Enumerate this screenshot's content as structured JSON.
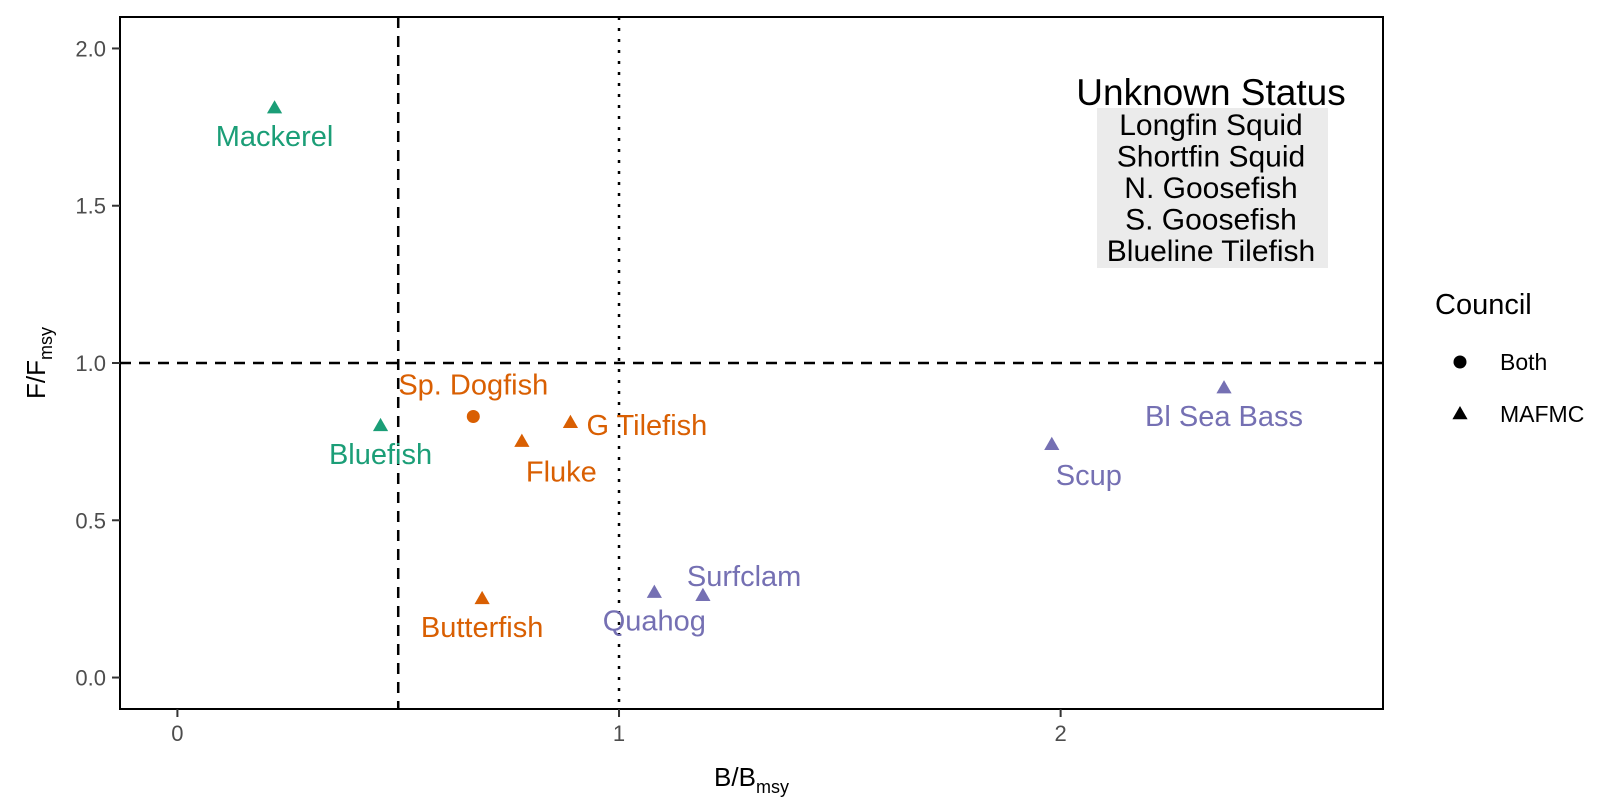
{
  "chart_data": {
    "type": "scatter",
    "xlabel": "B/B",
    "xlabel_sub": "msy",
    "ylabel": "F/F",
    "ylabel_sub": "msy",
    "xlim": [
      -0.13,
      2.73
    ],
    "ylim": [
      -0.1,
      2.1
    ],
    "x_ticks": [
      0,
      1,
      2
    ],
    "y_ticks": [
      0.0,
      0.5,
      1.0,
      1.5,
      2.0
    ],
    "x_tick_labels": [
      "0",
      "1",
      "2"
    ],
    "y_tick_labels": [
      "0.0",
      "0.5",
      "1.0",
      "1.5",
      "2.0"
    ],
    "grid": false,
    "reference_lines": [
      {
        "axis": "x",
        "value": 0.5,
        "style": "dashed"
      },
      {
        "axis": "x",
        "value": 1.0,
        "style": "dotted"
      },
      {
        "axis": "y",
        "value": 1.0,
        "style": "dashed"
      }
    ],
    "colors": {
      "green": "#1b9e77",
      "orange": "#d95f02",
      "purple": "#7570b3"
    },
    "points": [
      {
        "label": "Mackerel",
        "x": 0.22,
        "y": 1.81,
        "council": "MAFMC",
        "color": "#1b9e77",
        "label_pos": "below"
      },
      {
        "label": "Bluefish",
        "x": 0.46,
        "y": 0.8,
        "council": "MAFMC",
        "color": "#1b9e77",
        "label_pos": "below"
      },
      {
        "label": "Sp. Dogfish",
        "x": 0.67,
        "y": 0.83,
        "council": "Both",
        "color": "#d95f02",
        "label_pos": "above"
      },
      {
        "label": "Fluke",
        "x": 0.78,
        "y": 0.75,
        "council": "MAFMC",
        "color": "#d95f02",
        "label_pos": "below-right"
      },
      {
        "label": "G Tilefish",
        "x": 0.89,
        "y": 0.81,
        "council": "MAFMC",
        "color": "#d95f02",
        "label_pos": "right"
      },
      {
        "label": "Butterfish",
        "x": 0.69,
        "y": 0.25,
        "council": "MAFMC",
        "color": "#d95f02",
        "label_pos": "below"
      },
      {
        "label": "Quahog",
        "x": 1.08,
        "y": 0.27,
        "council": "MAFMC",
        "color": "#7570b3",
        "label_pos": "below"
      },
      {
        "label": "Surfclam",
        "x": 1.19,
        "y": 0.26,
        "council": "MAFMC",
        "color": "#7570b3",
        "label_pos": "above-right"
      },
      {
        "label": "Scup",
        "x": 1.98,
        "y": 0.74,
        "council": "MAFMC",
        "color": "#7570b3",
        "label_pos": "below-right"
      },
      {
        "label": "Bl Sea Bass",
        "x": 2.37,
        "y": 0.92,
        "council": "MAFMC",
        "color": "#7570b3",
        "label_pos": "below"
      }
    ],
    "legend": {
      "title": "Council",
      "position": "right",
      "entries": [
        {
          "label": "Both",
          "shape": "circle"
        },
        {
          "label": "MAFMC",
          "shape": "triangle"
        }
      ]
    },
    "annotation": {
      "title": "Unknown Status",
      "items": [
        "Longfin Squid",
        "Shortfin Squid",
        "N. Goosefish",
        "S. Goosefish",
        "Blueline Tilefish"
      ]
    }
  }
}
